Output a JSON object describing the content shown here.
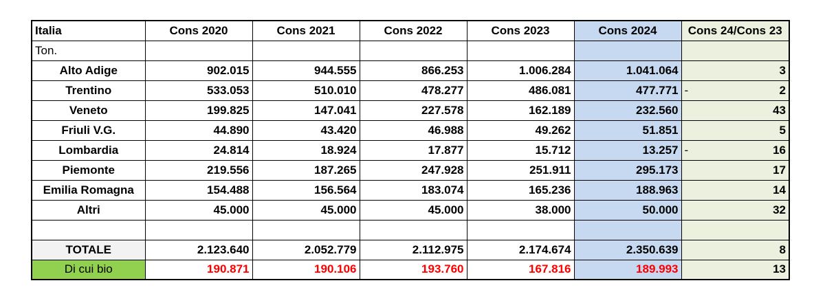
{
  "header": {
    "region": "Italia",
    "cols": [
      "Cons 2020",
      "Cons 2021",
      "Cons 2022",
      "Cons 2023",
      "Cons 2024",
      "Cons 24/Cons 23"
    ]
  },
  "unit": "Ton.",
  "rows": [
    {
      "name": "Alto Adige",
      "v": [
        "902.015",
        "944.555",
        "866.253",
        "1.006.284",
        "1.041.064"
      ],
      "sign": "",
      "ratio": "3"
    },
    {
      "name": "Trentino",
      "v": [
        "533.053",
        "510.010",
        "478.277",
        "486.081",
        "477.771"
      ],
      "sign": "-",
      "ratio": "2"
    },
    {
      "name": "Veneto",
      "v": [
        "199.825",
        "147.041",
        "227.578",
        "162.189",
        "232.560"
      ],
      "sign": "",
      "ratio": "43"
    },
    {
      "name": "Friuli V.G.",
      "v": [
        "44.890",
        "43.420",
        "46.988",
        "49.262",
        "51.851"
      ],
      "sign": "",
      "ratio": "5"
    },
    {
      "name": "Lombardia",
      "v": [
        "24.814",
        "18.924",
        "17.877",
        "15.712",
        "13.257"
      ],
      "sign": "-",
      "ratio": "16"
    },
    {
      "name": "Piemonte",
      "v": [
        "219.556",
        "187.265",
        "247.928",
        "251.911",
        "295.173"
      ],
      "sign": "",
      "ratio": "17"
    },
    {
      "name": "Emilia Romagna",
      "v": [
        "154.488",
        "156.564",
        "183.074",
        "165.236",
        "188.963"
      ],
      "sign": "",
      "ratio": "14"
    },
    {
      "name": "Altri",
      "v": [
        "45.000",
        "45.000",
        "45.000",
        "38.000",
        "50.000"
      ],
      "sign": "",
      "ratio": "32"
    }
  ],
  "totale": {
    "label": "TOTALE",
    "v": [
      "2.123.640",
      "2.052.779",
      "2.112.975",
      "2.174.674",
      "2.350.639"
    ],
    "ratio": "8"
  },
  "bio": {
    "label": "Di cui bio",
    "v": [
      "190.871",
      "190.106",
      "193.760",
      "167.816",
      "189.993"
    ],
    "ratio": "13"
  },
  "colors": {
    "cons2024_bg": "#c6d9f0",
    "ratio_bg": "#ebf1de",
    "bio_label_bg": "#92d050",
    "bio_values": "#ff0000",
    "totale_label_bg": "#f2f2f2"
  }
}
